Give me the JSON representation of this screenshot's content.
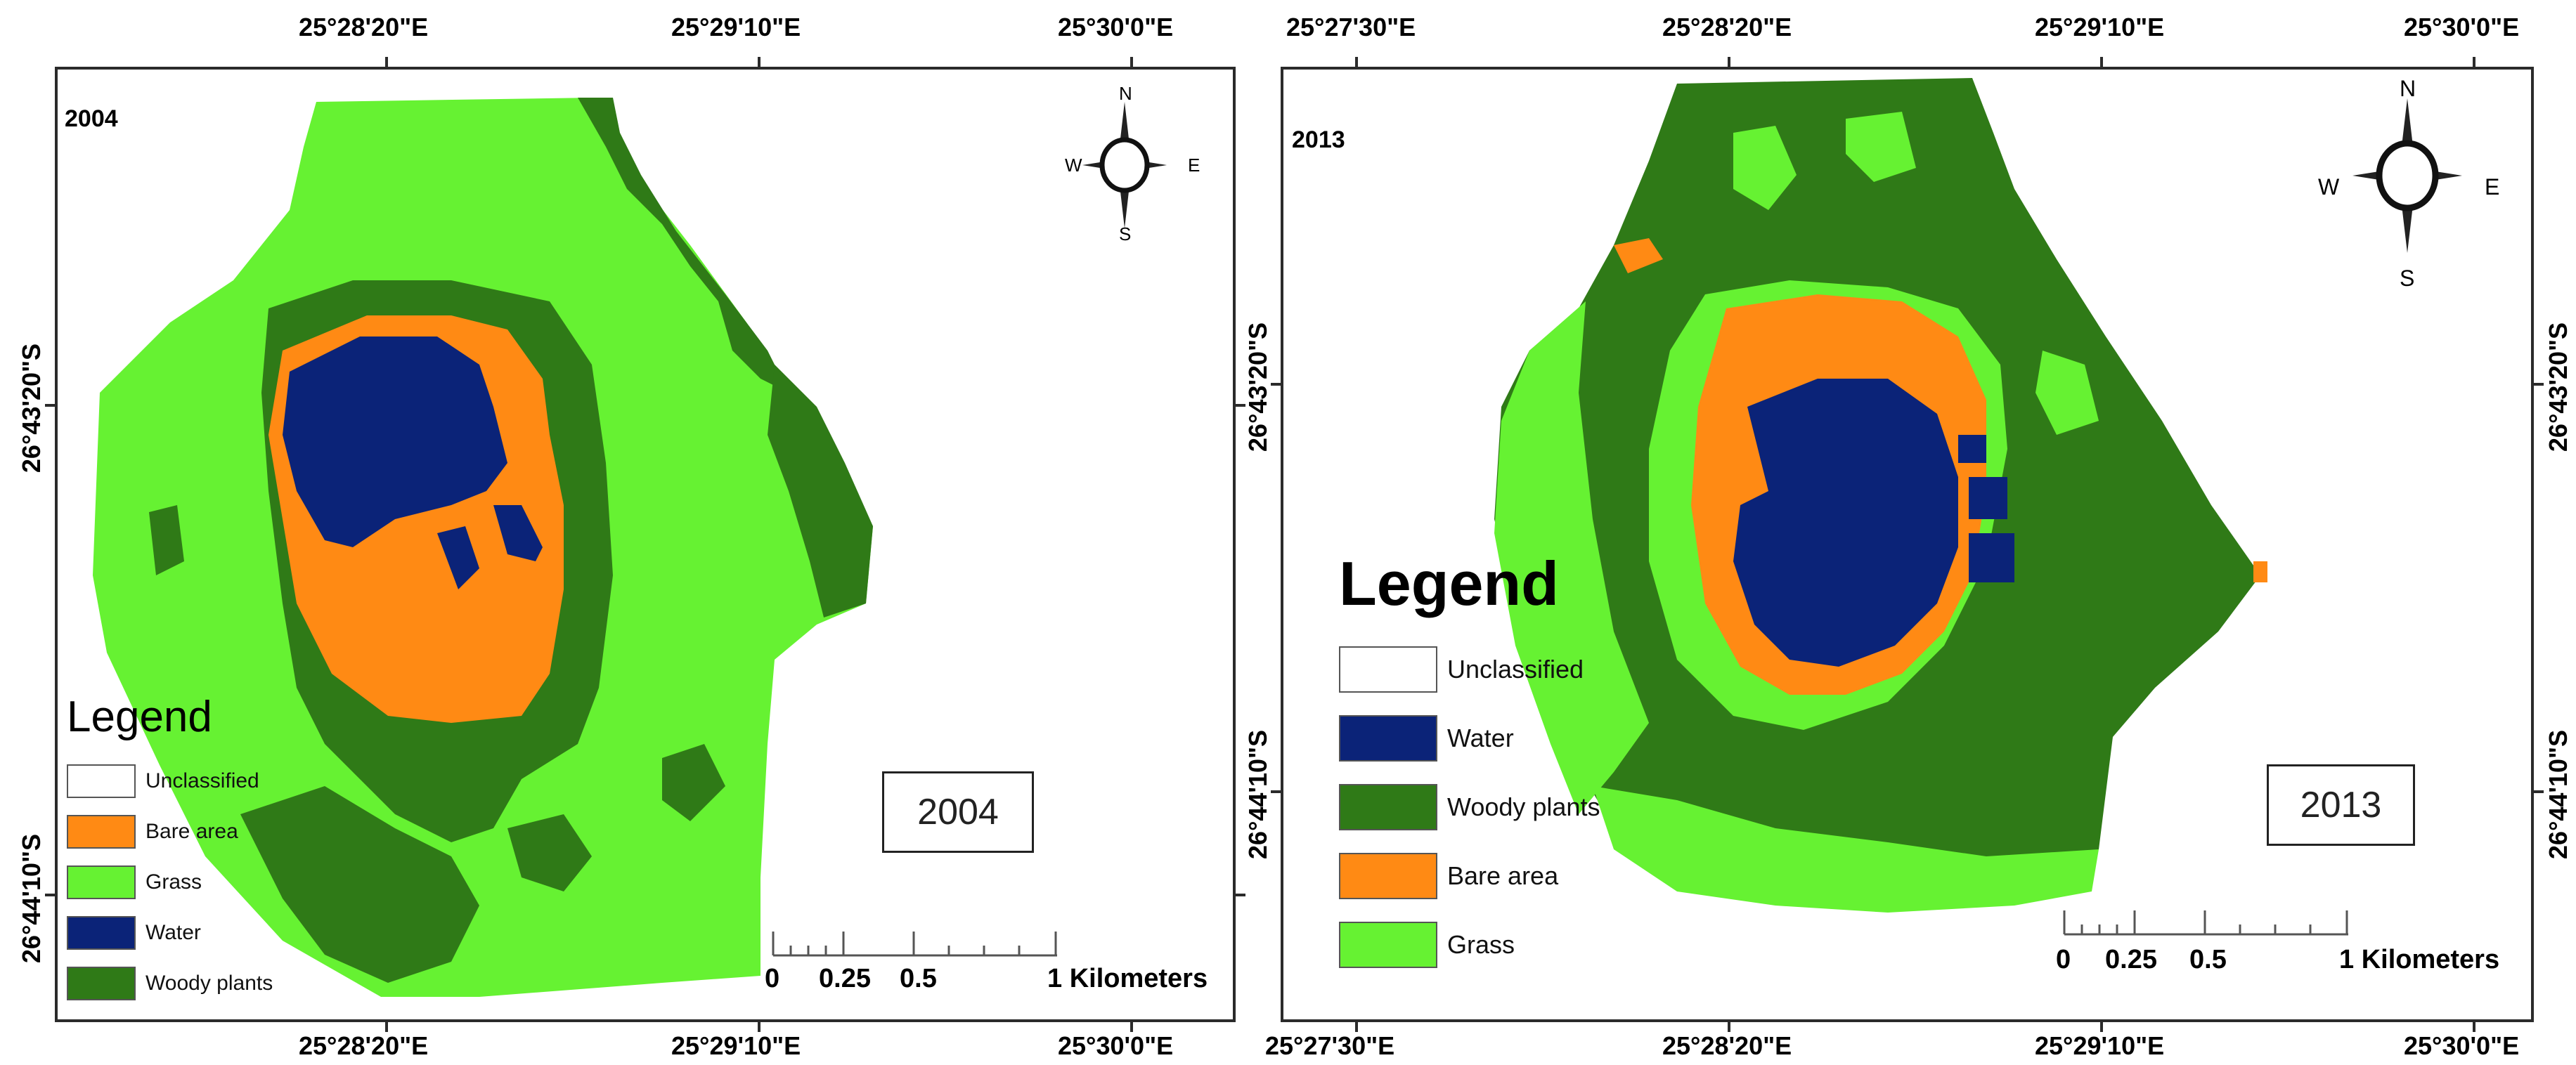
{
  "colors": {
    "water": "#0b2378",
    "bare": "#ff8a14",
    "grass": "#66f232",
    "woody": "#2f7a17",
    "unclassified": "#ffffff"
  },
  "panels": [
    {
      "id": "2004",
      "year_label": "2004",
      "year_box": "2004",
      "top_ticks": [
        "25°28'20\"E",
        "25°29'10\"E",
        "25°30'0\"E"
      ],
      "bottom_ticks": [
        "25°28'20\"E",
        "25°29'10\"E",
        "25°30'0\"E"
      ],
      "left_ticks": [
        "26°43'20\"S",
        "26°44'10\"S"
      ],
      "compass": {
        "n": "N",
        "s": "S",
        "e": "E",
        "w": "W"
      },
      "legend_title": "Legend",
      "legend": [
        {
          "label": "Unclassified",
          "class": "unclassified"
        },
        {
          "label": "Bare area",
          "class": "bare"
        },
        {
          "label": "Grass",
          "class": "grass"
        },
        {
          "label": "Water",
          "class": "water"
        },
        {
          "label": "Woody plants",
          "class": "woody"
        }
      ],
      "scale": {
        "labels": [
          "0",
          "0.25",
          "0.5",
          "1 Kilometers"
        ]
      }
    },
    {
      "id": "2013",
      "year_label": "2013",
      "year_box": "2013",
      "top_ticks": [
        "25°27'30\"E",
        "25°28'20\"E",
        "25°29'10\"E",
        "25°30'0\"E"
      ],
      "bottom_ticks": [
        "25°27'30\"E",
        "25°28'20\"E",
        "25°29'10\"E",
        "25°30'0\"E"
      ],
      "left_ticks": [
        "26°43'20\"S",
        "26°44'10\"S"
      ],
      "right_ticks": [
        "26°43'20\"S",
        "26°44'10\"S"
      ],
      "compass": {
        "n": "N",
        "s": "S",
        "e": "E",
        "w": "W"
      },
      "legend_title": "Legend",
      "legend": [
        {
          "label": "Unclassified",
          "class": "unclassified"
        },
        {
          "label": "Water",
          "class": "water"
        },
        {
          "label": "Woody plants",
          "class": "woody"
        },
        {
          "label": "Bare area",
          "class": "bare"
        },
        {
          "label": "Grass",
          "class": "grass"
        }
      ],
      "scale": {
        "labels": [
          "0",
          "0.25",
          "0.5",
          "1 Kilometers"
        ]
      }
    }
  ]
}
